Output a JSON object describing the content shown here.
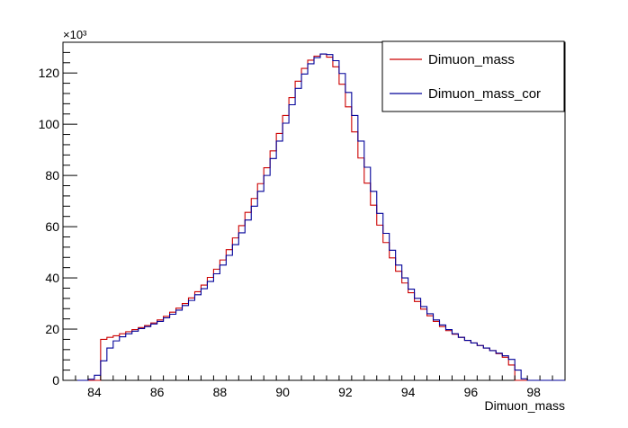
{
  "chart_data": {
    "type": "line",
    "title": "",
    "xlabel": "Dimuon_mass",
    "ylabel": "",
    "y_multiplier_label": "×10³",
    "xlim": [
      83,
      99
    ],
    "ylim": [
      0,
      132
    ],
    "x_ticks": [
      84,
      86,
      88,
      90,
      92,
      94,
      96,
      98
    ],
    "y_ticks": [
      0,
      20,
      40,
      60,
      80,
      100,
      120
    ],
    "grid": false,
    "legend_position": "top-right",
    "bin_edges_start": 83.0,
    "bin_width": 0.2,
    "series": [
      {
        "name": "Dimuon_mass",
        "color": "#cc0000",
        "values": [
          0,
          0,
          0,
          0,
          0,
          0,
          16,
          16.8,
          17.4,
          18.2,
          19,
          19.8,
          20.6,
          21.4,
          22.4,
          23.6,
          25,
          26.6,
          28.2,
          30,
          32.2,
          34.6,
          37.2,
          40.2,
          43.4,
          47,
          51,
          55.6,
          60.4,
          65.6,
          71,
          76.8,
          83,
          89.6,
          96.4,
          103.4,
          110.4,
          116.8,
          121.8,
          125,
          126.6,
          127.4,
          126.2,
          122.4,
          115.6,
          106.8,
          97,
          86.8,
          77,
          68.4,
          60.6,
          53.8,
          47.8,
          42.6,
          38,
          34.2,
          30.8,
          27.8,
          25.2,
          23,
          21,
          19.4,
          18,
          16.8,
          15.6,
          14.6,
          13.6,
          12.6,
          11.6,
          10.4,
          9,
          6,
          0,
          0,
          0,
          0,
          0,
          0,
          0,
          0
        ]
      },
      {
        "name": "Dimuon_mass_cor",
        "color": "#000099",
        "values": [
          0,
          0,
          0,
          0,
          0.4,
          2,
          7.6,
          12.6,
          15.4,
          17,
          18.2,
          19.2,
          20.2,
          21,
          22,
          23,
          24.4,
          25.8,
          27.4,
          29.2,
          31.2,
          33.4,
          35.8,
          38.6,
          41.6,
          45,
          48.8,
          53,
          57.6,
          62.6,
          68,
          73.8,
          80,
          86.6,
          93.4,
          100.4,
          107.6,
          114,
          119.6,
          123.6,
          126,
          127.4,
          127.2,
          124.8,
          119.8,
          112.4,
          103.4,
          93.4,
          83.2,
          73.8,
          65.2,
          57.4,
          50.8,
          45,
          40,
          35.6,
          32,
          28.8,
          26,
          23.6,
          21.6,
          19.8,
          18.2,
          16.8,
          15.6,
          14.6,
          13.6,
          12.6,
          11.6,
          10.6,
          9.6,
          8.2,
          4,
          0.6,
          0,
          0,
          0,
          0,
          0,
          0
        ]
      }
    ]
  }
}
